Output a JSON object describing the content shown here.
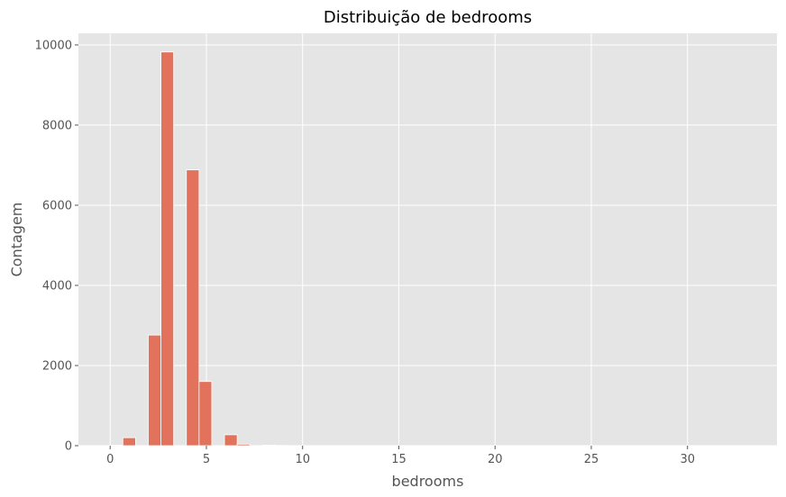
{
  "chart_data": {
    "type": "bar",
    "title": "Distribuição de bedrooms",
    "xlabel": "bedrooms",
    "ylabel": "Contagem",
    "xlim": [
      -1.65,
      34.65
    ],
    "ylim": [
      0,
      10290
    ],
    "xticks": [
      0,
      5,
      10,
      15,
      20,
      25,
      30
    ],
    "yticks": [
      0,
      2000,
      4000,
      6000,
      8000,
      10000
    ],
    "bin_width": 0.66,
    "grid": true,
    "colors": {
      "bar": "#E2725B",
      "bar_edge": "#ffffff",
      "background": "#E5E5E5",
      "grid": "#ffffff"
    },
    "bins": [
      {
        "start": 0.0,
        "end": 0.66,
        "count": 13
      },
      {
        "start": 0.66,
        "end": 1.32,
        "count": 199
      },
      {
        "start": 1.98,
        "end": 2.64,
        "count": 2760
      },
      {
        "start": 2.64,
        "end": 3.3,
        "count": 9824
      },
      {
        "start": 3.96,
        "end": 4.62,
        "count": 6882
      },
      {
        "start": 4.62,
        "end": 5.28,
        "count": 1601
      },
      {
        "start": 5.94,
        "end": 6.6,
        "count": 272
      },
      {
        "start": 6.6,
        "end": 7.26,
        "count": 38
      },
      {
        "start": 7.92,
        "end": 8.58,
        "count": 13
      },
      {
        "start": 8.58,
        "end": 9.24,
        "count": 6
      },
      {
        "start": 9.9,
        "end": 10.56,
        "count": 3
      },
      {
        "start": 10.56,
        "end": 11.22,
        "count": 1
      },
      {
        "start": 32.34,
        "end": 33.0,
        "count": 1
      }
    ]
  }
}
